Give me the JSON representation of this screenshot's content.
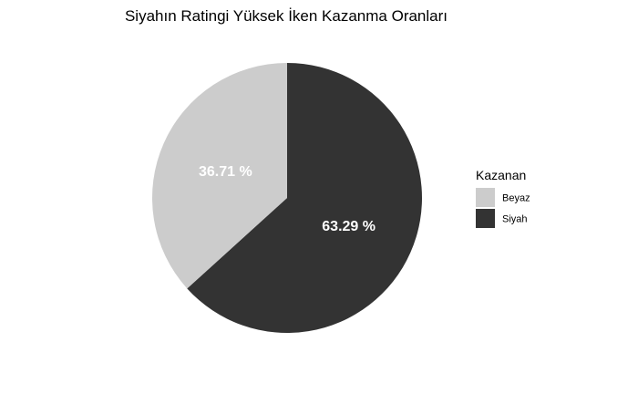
{
  "chart_data": {
    "type": "pie",
    "title": "Siyahın Ratingi Yüksek İken Kazanma Oranları",
    "slices": [
      {
        "label": "Siyah",
        "value": 63.29,
        "display": "63.29 %",
        "color": "#333333"
      },
      {
        "label": "Beyaz",
        "value": 36.71,
        "display": "36.71 %",
        "color": "#cccccc"
      }
    ],
    "legend": {
      "title": "Kazanan",
      "placement": "right",
      "entries": [
        {
          "label": "Beyaz",
          "color": "#cccccc"
        },
        {
          "label": "Siyah",
          "color": "#333333"
        }
      ]
    },
    "label_color": "#ffffff",
    "background": "#ffffff"
  }
}
